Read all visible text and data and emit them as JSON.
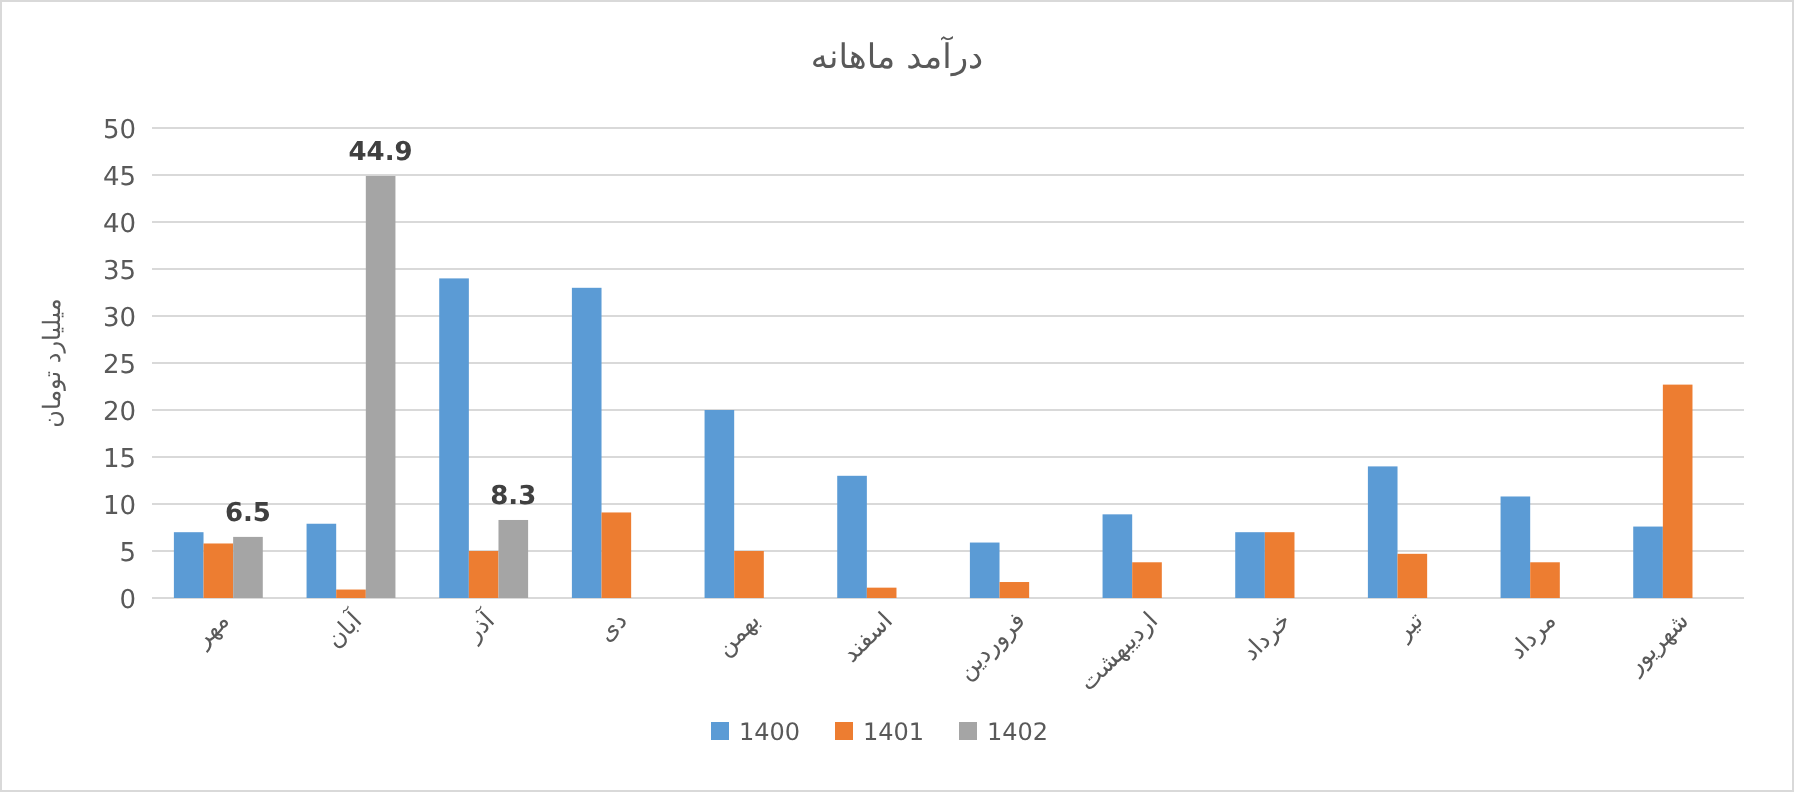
{
  "chart_data": {
    "type": "bar",
    "title": "درآمد ماهانه",
    "ylabel": "میلیارد تومان",
    "categories": [
      "مهر",
      "آبان",
      "آذر",
      "دی",
      "بهمن",
      "اسفند",
      "فروردین",
      "اردیبهشت",
      "خرداد",
      "تیر",
      "مرداد",
      "شهریور"
    ],
    "series": [
      {
        "name": "1400",
        "color": "#5b9bd5",
        "values": [
          7,
          7.9,
          34,
          33,
          20,
          13,
          5.9,
          8.9,
          7,
          14,
          10.8,
          7.6
        ]
      },
      {
        "name": "1401",
        "color": "#ed7d31",
        "values": [
          5.8,
          0.9,
          5,
          9.1,
          5,
          1.1,
          1.7,
          3.8,
          7,
          4.7,
          3.8,
          22.7
        ]
      },
      {
        "name": "1402",
        "color": "#a5a5a5",
        "values": [
          6.5,
          44.9,
          8.3,
          null,
          null,
          null,
          null,
          null,
          null,
          null,
          null,
          null
        ],
        "value_labels": [
          "6.5",
          "44.9",
          "8.3",
          null,
          null,
          null,
          null,
          null,
          null,
          null,
          null,
          null
        ]
      }
    ],
    "ylim": [
      0,
      50
    ],
    "yticks": [
      0,
      5,
      10,
      15,
      20,
      25,
      30,
      35,
      40,
      45,
      50
    ],
    "grid": "y",
    "legend": "bottom"
  }
}
